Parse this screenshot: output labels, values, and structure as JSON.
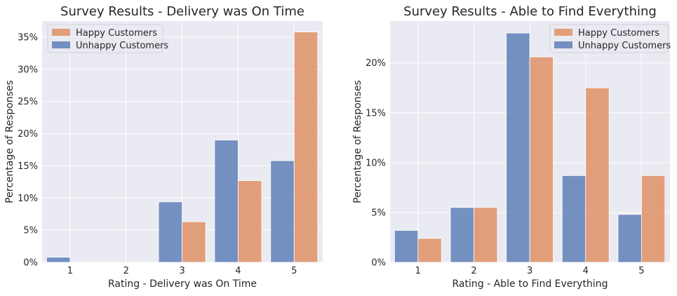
{
  "colors": {
    "happy": "#DD8452",
    "unhappy": "#4C72B0",
    "plot_bg": "#EAEAF2",
    "grid": "#FFFFFF"
  },
  "chart_data": [
    {
      "type": "bar",
      "title": "Survey Results - Delivery was On Time",
      "xlabel": "Rating - Delivery was On Time",
      "ylabel": "Percentage of Responses",
      "categories": [
        "1",
        "2",
        "3",
        "4",
        "5"
      ],
      "ylim": [
        0,
        37.5
      ],
      "yticks": [
        0,
        5,
        10,
        15,
        20,
        25,
        30,
        35
      ],
      "ytick_labels": [
        "0%",
        "5%",
        "10%",
        "15%",
        "20%",
        "25%",
        "30%",
        "35%"
      ],
      "legend_position": "top-left",
      "grid": true,
      "series": [
        {
          "name": "Unhappy Customers",
          "values": [
            0.8,
            0,
            9.4,
            19.0,
            15.8
          ]
        },
        {
          "name": "Happy Customers",
          "values": [
            0,
            0,
            6.3,
            12.7,
            35.8
          ]
        }
      ],
      "legend_order": [
        "Happy Customers",
        "Unhappy Customers"
      ]
    },
    {
      "type": "bar",
      "title": "Survey Results - Able to Find Everything",
      "xlabel": "Rating - Able to Find Everything",
      "ylabel": "Percentage of Responses",
      "categories": [
        "1",
        "2",
        "3",
        "4",
        "5"
      ],
      "ylim": [
        0,
        24.2
      ],
      "yticks": [
        0,
        5,
        10,
        15,
        20
      ],
      "ytick_labels": [
        "0%",
        "5%",
        "10%",
        "15%",
        "20%"
      ],
      "legend_position": "top-right",
      "grid": true,
      "series": [
        {
          "name": "Unhappy Customers",
          "values": [
            3.2,
            5.5,
            23.0,
            8.7,
            4.8
          ]
        },
        {
          "name": "Happy Customers",
          "values": [
            2.4,
            5.5,
            20.6,
            17.5,
            8.7
          ]
        }
      ],
      "legend_order": [
        "Happy Customers",
        "Unhappy Customers"
      ]
    }
  ]
}
